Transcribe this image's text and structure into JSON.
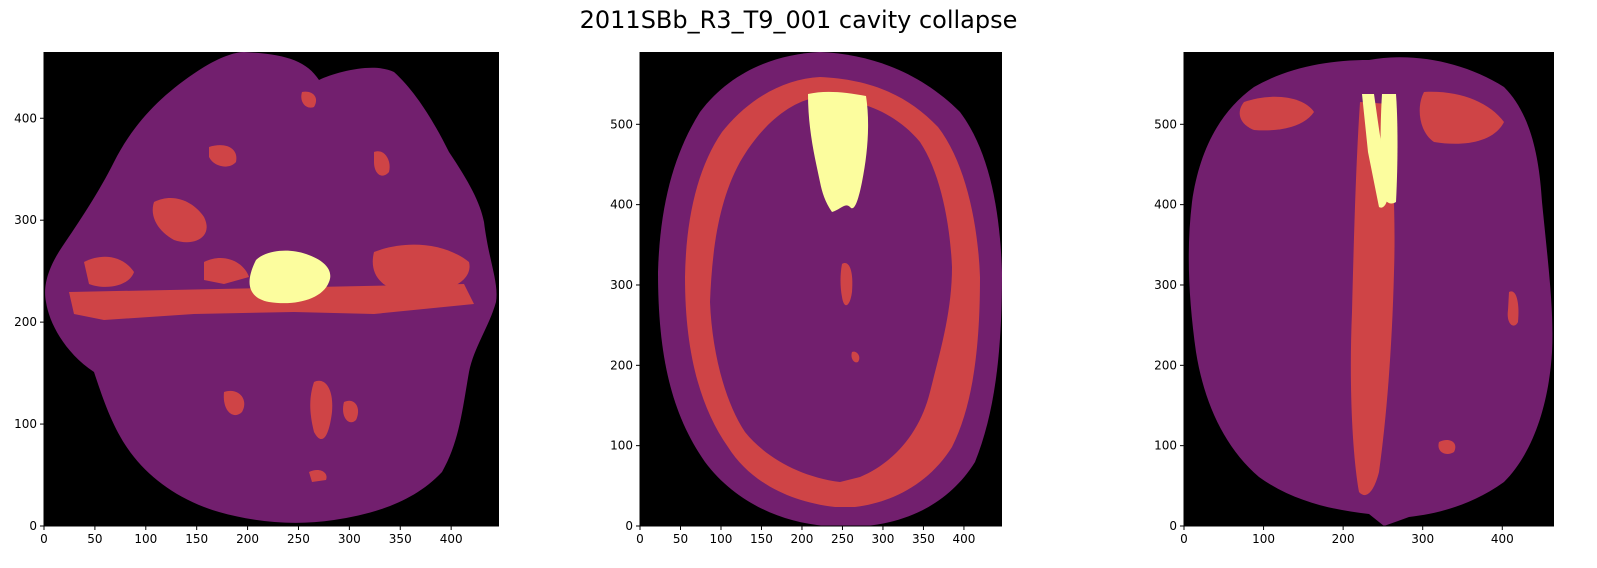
{
  "title": "2011SBb_R3_T9_001 cavity collapse",
  "colors": {
    "background": "#000000",
    "tissue": "#721f6e",
    "mid": "#cf4446",
    "cavity": "#fcfd9e"
  },
  "panels": [
    {
      "x_ticks": [
        "0",
        "50",
        "100",
        "150",
        "200",
        "250",
        "300",
        "350",
        "400"
      ],
      "y_ticks": [
        "0",
        "100",
        "200",
        "300",
        "400"
      ],
      "xlim": [
        0,
        447
      ],
      "ylim": [
        0,
        465
      ]
    },
    {
      "x_ticks": [
        "0",
        "50",
        "100",
        "150",
        "200",
        "250",
        "300",
        "350",
        "400"
      ],
      "y_ticks": [
        "0",
        "100",
        "200",
        "300",
        "400",
        "500"
      ],
      "xlim": [
        0,
        447
      ],
      "ylim": [
        0,
        590
      ]
    },
    {
      "x_ticks": [
        "0",
        "100",
        "200",
        "300",
        "400"
      ],
      "y_ticks": [
        "0",
        "100",
        "200",
        "300",
        "400",
        "500"
      ],
      "xlim": [
        0,
        465
      ],
      "ylim": [
        0,
        590
      ]
    }
  ]
}
